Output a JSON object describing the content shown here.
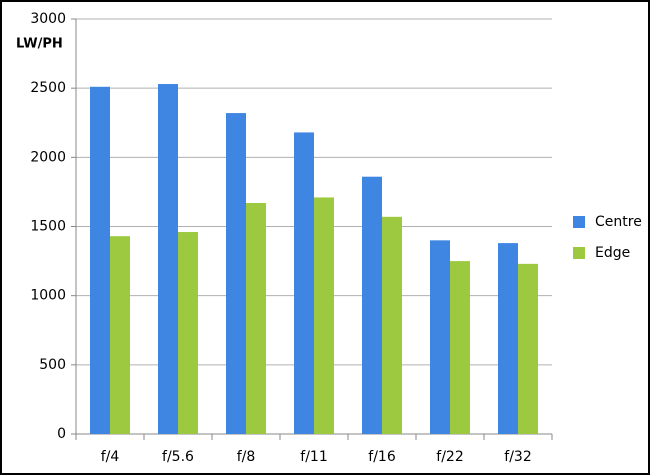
{
  "chart_data": {
    "type": "bar",
    "y_label": "LW/PH",
    "categories": [
      "f/4",
      "f/5.6",
      "f/8",
      "f/11",
      "f/16",
      "f/22",
      "f/32"
    ],
    "series": [
      {
        "name": "Centre",
        "color": "#3f86e3",
        "values": [
          2510,
          2530,
          2320,
          2180,
          1860,
          1400,
          1380
        ]
      },
      {
        "name": "Edge",
        "color": "#9cc93f",
        "values": [
          1430,
          1460,
          1670,
          1710,
          1570,
          1250,
          1230
        ]
      }
    ],
    "ylim": [
      0,
      3000
    ],
    "yticks": [
      0,
      500,
      1000,
      1500,
      2000,
      2500,
      3000
    ],
    "grid": true,
    "legend": "right"
  }
}
